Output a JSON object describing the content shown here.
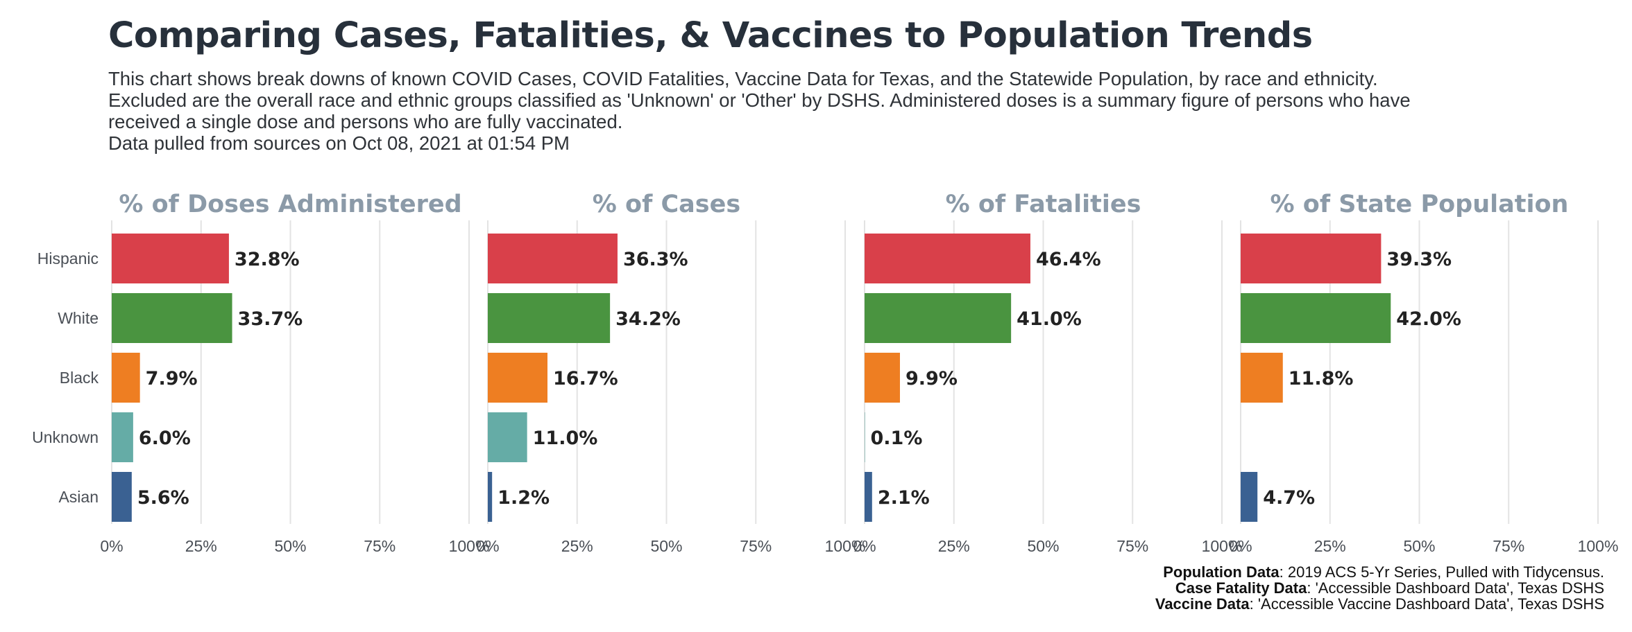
{
  "title": "Comparing Cases, Fatalities, & Vaccines to Population Trends",
  "subtitle_lines": [
    "This chart shows break downs of known COVID Cases, COVID Fatalities, Vaccine Data for Texas, and the Statewide Population, by race and ethnicity.",
    "Excluded are the overall race and ethnic groups classified as 'Unknown' or 'Other' by DSHS. Administered doses is a summary figure of persons who have",
    "received a single dose and persons who are fully vaccinated.",
    "Data pulled from sources on Oct 08, 2021 at 01:54 PM"
  ],
  "captions": [
    {
      "bold": "Population Data",
      "text": ": 2019 ACS 5-Yr Series, Pulled with Tidycensus."
    },
    {
      "bold": "Case Fatality Data",
      "text": ": 'Accessible Dashboard Data', Texas DSHS"
    },
    {
      "bold": "Vaccine Data",
      "text": ": 'Accessible Vaccine Dashboard Data', Texas DSHS"
    }
  ],
  "colors": {
    "Hispanic": "#d9404a",
    "White": "#4a9440",
    "Black": "#ee7e22",
    "Unknown": "#65aca6",
    "Asian": "#3a6192",
    "panel_title": "#8b9aa8",
    "gridline": "#e3e3e3"
  },
  "chart_data": {
    "type": "bar",
    "orientation": "horizontal",
    "categories": [
      "Hispanic",
      "White",
      "Black",
      "Unknown",
      "Asian"
    ],
    "xlim": [
      0,
      100
    ],
    "xticks": [
      "0%",
      "25%",
      "50%",
      "75%",
      "100%"
    ],
    "grid": true,
    "panels": [
      {
        "title": "% of Doses Administered",
        "values": [
          32.8,
          33.7,
          7.9,
          6.0,
          5.6
        ],
        "labels": [
          "32.8%",
          "33.7%",
          "7.9%",
          "6.0%",
          "5.6%"
        ]
      },
      {
        "title": "% of Cases",
        "values": [
          36.3,
          34.2,
          16.7,
          11.0,
          1.2
        ],
        "labels": [
          "36.3%",
          "34.2%",
          "16.7%",
          "11.0%",
          "1.2%"
        ]
      },
      {
        "title": "% of Fatalities",
        "values": [
          46.4,
          41.0,
          9.9,
          0.1,
          2.1
        ],
        "labels": [
          "46.4%",
          "41.0%",
          "9.9%",
          "0.1%",
          "2.1%"
        ]
      },
      {
        "title": "% of State Population",
        "values": [
          39.3,
          42.0,
          11.8,
          null,
          4.7
        ],
        "labels": [
          "39.3%",
          "42.0%",
          "11.8%",
          null,
          "4.7%"
        ]
      }
    ]
  }
}
